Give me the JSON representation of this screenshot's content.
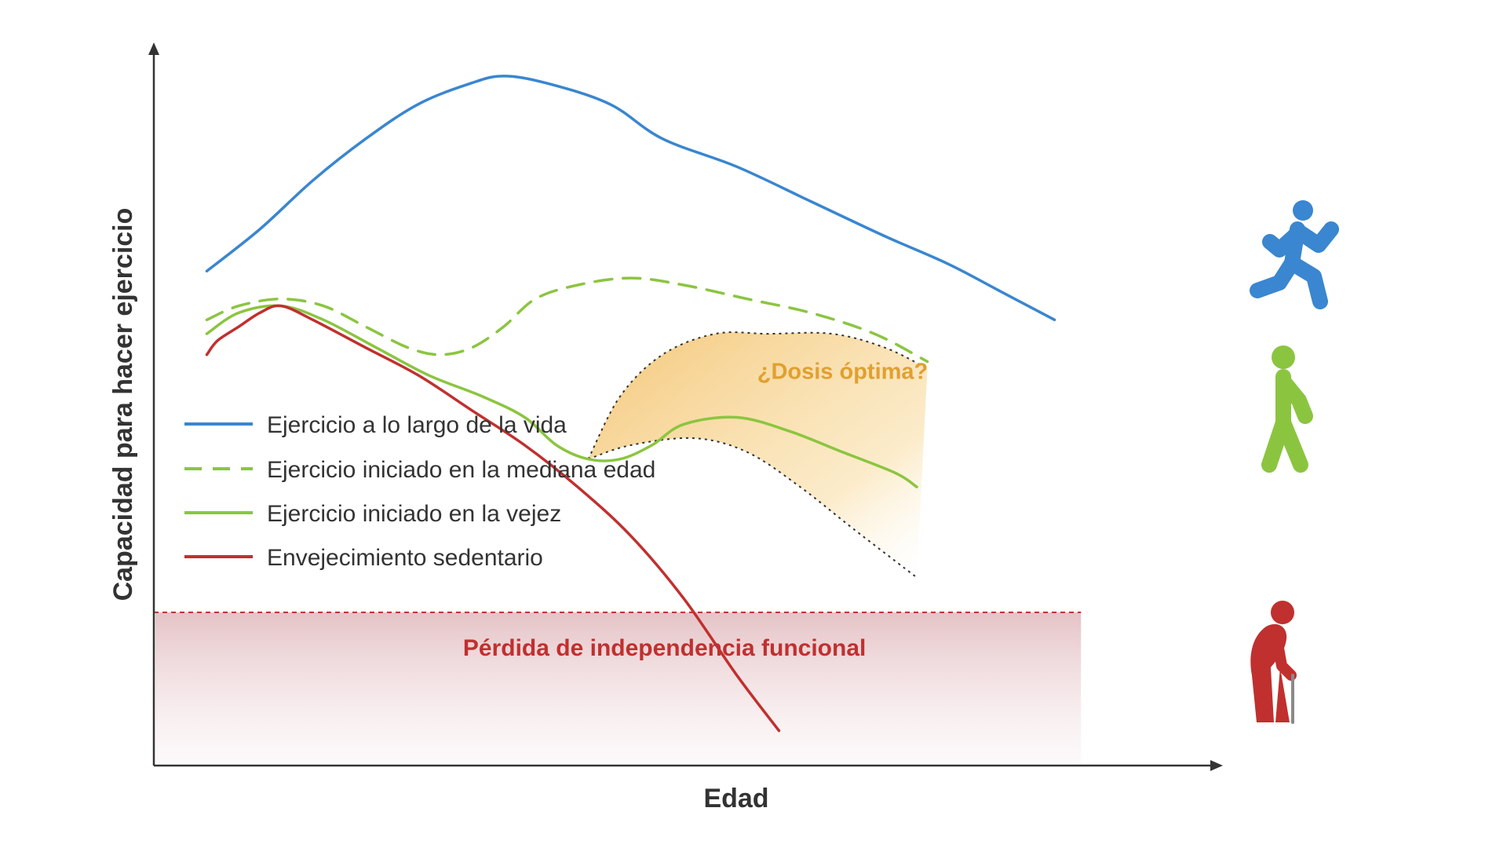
{
  "chart_data": {
    "type": "line",
    "xlabel": "Edad",
    "ylabel": "Capacidad para hacer ejercicio",
    "xlim": [
      0,
      100
    ],
    "ylim": [
      0,
      100
    ],
    "grid": false,
    "legend_position": "center-left",
    "series": [
      {
        "name": "Ejercicio a lo largo de la vida",
        "color": "#3a86d0",
        "dash": "solid",
        "points": [
          [
            5,
            71
          ],
          [
            10,
            77
          ],
          [
            15,
            84
          ],
          [
            20,
            90
          ],
          [
            25,
            95
          ],
          [
            30,
            98
          ],
          [
            33,
            99
          ],
          [
            37,
            98
          ],
          [
            43,
            95
          ],
          [
            48,
            90
          ],
          [
            55,
            86
          ],
          [
            62,
            81
          ],
          [
            69,
            76
          ],
          [
            75,
            72
          ],
          [
            80,
            68
          ],
          [
            85,
            64
          ]
        ]
      },
      {
        "name": "Ejercicio iniciado en la mediana edad",
        "color": "#8bc540",
        "dash": "dashed",
        "points": [
          [
            5,
            64
          ],
          [
            8,
            66
          ],
          [
            12,
            67
          ],
          [
            16,
            66
          ],
          [
            20,
            63
          ],
          [
            24,
            60
          ],
          [
            27,
            59
          ],
          [
            30,
            60
          ],
          [
            33,
            63
          ],
          [
            36,
            67
          ],
          [
            40,
            69
          ],
          [
            45,
            70
          ],
          [
            50,
            69
          ],
          [
            56,
            67
          ],
          [
            62,
            65
          ],
          [
            68,
            62
          ],
          [
            73,
            58
          ]
        ]
      },
      {
        "name": "Ejercicio iniciado en la vejez",
        "color": "#8bc540",
        "dash": "solid",
        "points": [
          [
            5,
            62
          ],
          [
            8,
            65
          ],
          [
            12,
            66
          ],
          [
            16,
            64
          ],
          [
            21,
            60
          ],
          [
            26,
            56
          ],
          [
            31,
            53
          ],
          [
            35,
            50
          ],
          [
            38,
            46
          ],
          [
            41,
            44
          ],
          [
            44,
            44
          ],
          [
            47,
            46
          ],
          [
            50,
            49
          ],
          [
            55,
            50
          ],
          [
            60,
            48
          ],
          [
            65,
            45
          ],
          [
            70,
            42
          ],
          [
            72,
            40
          ]
        ]
      },
      {
        "name": "Envejecimiento sedentario",
        "color": "#c0302f",
        "dash": "solid",
        "points": [
          [
            5,
            59
          ],
          [
            6,
            61
          ],
          [
            8,
            63
          ],
          [
            10,
            65
          ],
          [
            12,
            66
          ],
          [
            15,
            64
          ],
          [
            20,
            60
          ],
          [
            25,
            56
          ],
          [
            30,
            51
          ],
          [
            35,
            46
          ],
          [
            40,
            40
          ],
          [
            45,
            33
          ],
          [
            50,
            24
          ],
          [
            55,
            13
          ],
          [
            59,
            5
          ]
        ]
      }
    ],
    "thresholds": [
      {
        "label": "Pérdida de independencia funcional",
        "y": 22,
        "color": "#c0302f"
      }
    ],
    "bands": [
      {
        "label": "¿Dosis óptima?",
        "color": "#f0b040",
        "upper": [
          [
            41,
            44
          ],
          [
            44,
            53
          ],
          [
            48,
            59
          ],
          [
            53,
            62
          ],
          [
            58,
            62
          ],
          [
            64,
            62
          ],
          [
            69,
            60
          ],
          [
            73,
            57
          ]
        ],
        "lower": [
          [
            41,
            44
          ],
          [
            45,
            46
          ],
          [
            51,
            47
          ],
          [
            56,
            45
          ],
          [
            61,
            40
          ],
          [
            66,
            34
          ],
          [
            72,
            27
          ]
        ]
      }
    ],
    "figures": [
      {
        "name": "runner-icon",
        "color": "#3a86d0"
      },
      {
        "name": "walker-icon",
        "color": "#8bc540"
      },
      {
        "name": "elderly-cane-icon",
        "color": "#c0302f"
      }
    ]
  }
}
